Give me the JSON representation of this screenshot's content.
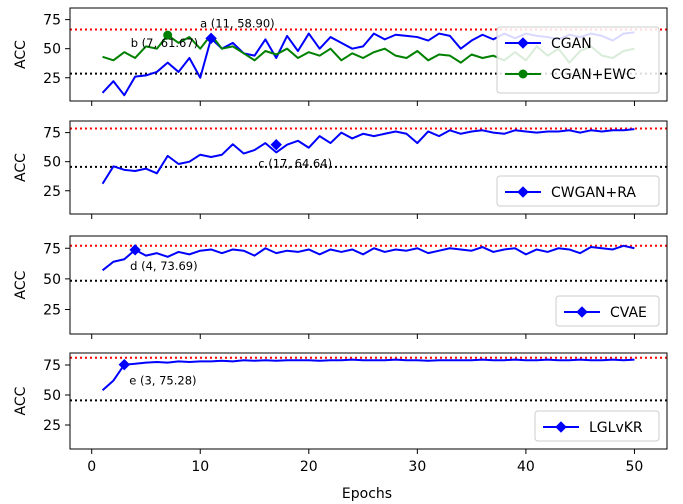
{
  "colors": {
    "cgan": "#0000ff",
    "cgan_ewc": "#008000",
    "upper_ref": "#ff0000",
    "lower_ref": "#000000"
  },
  "chart_data": [
    {
      "type": "line",
      "ylabel": "ACC",
      "xlim": [
        -2,
        53
      ],
      "ylim": [
        5,
        85
      ],
      "yticks": [
        25,
        50,
        75
      ],
      "xticks": [
        0,
        10,
        20,
        30,
        40,
        50
      ],
      "show_xticklabels": false,
      "legend_position": "lower-right",
      "ref_lines": [
        {
          "y": 66.5,
          "color": "#ff0000",
          "style": "dotted"
        },
        {
          "y": 28.5,
          "color": "#000000",
          "style": "dotted"
        }
      ],
      "series": [
        {
          "name": "CGAN",
          "color": "#0000ff",
          "marker": "diamond",
          "x": [
            1,
            2,
            3,
            4,
            5,
            6,
            7,
            8,
            9,
            10,
            11,
            12,
            13,
            14,
            15,
            16,
            17,
            18,
            19,
            20,
            21,
            22,
            23,
            24,
            25,
            26,
            27,
            28,
            29,
            30,
            31,
            32,
            33,
            34,
            35,
            36,
            37,
            38,
            39,
            40,
            41,
            42,
            43,
            44,
            45,
            46,
            47,
            48,
            49,
            50
          ],
          "values": [
            12,
            22,
            10,
            26,
            27,
            30,
            38,
            30,
            42,
            25,
            58.9,
            50,
            55,
            46,
            44,
            58,
            42,
            61,
            48,
            63,
            50,
            60,
            55,
            50,
            52,
            63,
            58,
            62,
            61,
            60,
            57,
            63,
            61,
            50,
            57,
            62,
            58,
            63,
            59,
            63,
            61,
            60,
            58,
            62,
            60,
            63,
            61,
            57,
            63,
            64
          ]
        },
        {
          "name": "CGAN+EWC",
          "color": "#008000",
          "marker": "circle",
          "x": [
            1,
            2,
            3,
            4,
            5,
            6,
            7,
            8,
            9,
            10,
            11,
            12,
            13,
            14,
            15,
            16,
            17,
            18,
            19,
            20,
            21,
            22,
            23,
            24,
            25,
            26,
            27,
            28,
            29,
            30,
            31,
            32,
            33,
            34,
            35,
            36,
            37,
            38,
            39,
            40,
            41,
            42,
            43,
            44,
            45,
            46,
            47,
            48,
            49,
            50
          ],
          "values": [
            43,
            40,
            47,
            42,
            52,
            50,
            61.67,
            55,
            60,
            50,
            62,
            50,
            52,
            46,
            40,
            48,
            45,
            50,
            42,
            47,
            44,
            50,
            40,
            46,
            42,
            47,
            50,
            44,
            42,
            48,
            40,
            45,
            44,
            38,
            45,
            42,
            44,
            40,
            47,
            40,
            52,
            44,
            50,
            38,
            48,
            52,
            44,
            42,
            48,
            50
          ]
        }
      ],
      "annotations": [
        {
          "text": "a (11, 58.90)",
          "x": 11,
          "y": 58.9,
          "series": 0
        },
        {
          "text": "b (7, 61.67)",
          "x": 7,
          "y": 61.67,
          "series": 1
        }
      ]
    },
    {
      "type": "line",
      "ylabel": "ACC",
      "xlim": [
        -2,
        53
      ],
      "ylim": [
        5,
        85
      ],
      "yticks": [
        25,
        50,
        75
      ],
      "xticks": [
        0,
        10,
        20,
        30,
        40,
        50
      ],
      "show_xticklabels": false,
      "legend_position": "lower-right",
      "ref_lines": [
        {
          "y": 78.5,
          "color": "#ff0000",
          "style": "dotted"
        },
        {
          "y": 45.5,
          "color": "#000000",
          "style": "dotted"
        }
      ],
      "series": [
        {
          "name": "CWGAN+RA",
          "color": "#0000ff",
          "marker": "diamond",
          "x": [
            1,
            2,
            3,
            4,
            5,
            6,
            7,
            8,
            9,
            10,
            11,
            12,
            13,
            14,
            15,
            16,
            17,
            18,
            19,
            20,
            21,
            22,
            23,
            24,
            25,
            26,
            27,
            28,
            29,
            30,
            31,
            32,
            33,
            34,
            35,
            36,
            37,
            38,
            39,
            40,
            41,
            42,
            43,
            44,
            45,
            46,
            47,
            48,
            49,
            50
          ],
          "values": [
            31,
            46,
            43,
            42,
            44,
            40,
            55,
            48,
            50,
            56,
            54,
            56,
            65,
            57,
            60,
            66,
            58,
            64.64,
            68,
            62,
            72,
            66,
            75,
            70,
            74,
            72,
            74,
            76,
            74,
            66,
            76,
            72,
            77,
            74,
            76,
            77,
            75,
            74,
            77,
            76,
            75,
            76,
            76,
            77,
            75,
            77,
            76,
            77,
            77,
            78
          ]
        }
      ],
      "annotations": [
        {
          "text": "c (17, 64.64)",
          "x": 17,
          "y": 64.64,
          "series": 0
        }
      ]
    },
    {
      "type": "line",
      "ylabel": "ACC",
      "xlim": [
        -2,
        53
      ],
      "ylim": [
        5,
        85
      ],
      "yticks": [
        25,
        50,
        75
      ],
      "xticks": [
        0,
        10,
        20,
        30,
        40,
        50
      ],
      "show_xticklabels": false,
      "legend_position": "lower-right",
      "ref_lines": [
        {
          "y": 77,
          "color": "#ff0000",
          "style": "dotted"
        },
        {
          "y": 48.5,
          "color": "#000000",
          "style": "dotted"
        }
      ],
      "series": [
        {
          "name": "CVAE",
          "color": "#0000ff",
          "marker": "diamond",
          "x": [
            1,
            2,
            3,
            4,
            5,
            6,
            7,
            8,
            9,
            10,
            11,
            12,
            13,
            14,
            15,
            16,
            17,
            18,
            19,
            20,
            21,
            22,
            23,
            24,
            25,
            26,
            27,
            28,
            29,
            30,
            31,
            32,
            33,
            34,
            35,
            36,
            37,
            38,
            39,
            40,
            41,
            42,
            43,
            44,
            45,
            46,
            47,
            48,
            49,
            50
          ],
          "values": [
            57,
            64,
            66,
            73.69,
            69,
            71,
            68,
            72,
            70,
            73,
            74,
            71,
            74,
            73,
            69,
            75,
            71,
            73,
            72,
            74,
            70,
            74,
            72,
            74,
            70,
            75,
            72,
            74,
            73,
            75,
            71,
            73,
            75,
            74,
            73,
            76,
            72,
            74,
            75,
            70,
            74,
            72,
            75,
            74,
            71,
            76,
            75,
            74,
            77,
            75
          ]
        }
      ],
      "annotations": [
        {
          "text": "d (4, 73.69)",
          "x": 4,
          "y": 73.69,
          "series": 0
        }
      ]
    },
    {
      "type": "line",
      "ylabel": "ACC",
      "xlabel": "Epochs",
      "xlim": [
        -2,
        53
      ],
      "ylim": [
        5,
        85
      ],
      "yticks": [
        25,
        50,
        75
      ],
      "xticks": [
        0,
        10,
        20,
        30,
        40,
        50
      ],
      "show_xticklabels": true,
      "legend_position": "lower-right",
      "ref_lines": [
        {
          "y": 81,
          "color": "#ff0000",
          "style": "dotted"
        },
        {
          "y": 45.5,
          "color": "#000000",
          "style": "dotted"
        }
      ],
      "series": [
        {
          "name": "LGLvKR",
          "color": "#0000ff",
          "marker": "diamond",
          "x": [
            1,
            2,
            3,
            4,
            5,
            6,
            7,
            8,
            9,
            10,
            11,
            12,
            13,
            14,
            15,
            16,
            17,
            18,
            19,
            20,
            21,
            22,
            23,
            24,
            25,
            26,
            27,
            28,
            29,
            30,
            31,
            32,
            33,
            34,
            35,
            36,
            37,
            38,
            39,
            40,
            41,
            42,
            43,
            44,
            45,
            46,
            47,
            48,
            49,
            50
          ],
          "values": [
            54,
            62,
            75.28,
            76,
            77,
            77.5,
            77,
            78,
            77.5,
            78,
            78,
            78.5,
            78,
            79,
            78.5,
            79,
            78.5,
            79,
            79,
            79,
            78.5,
            79,
            79,
            79.5,
            79,
            79,
            79,
            79.5,
            79,
            79,
            78.5,
            79,
            79,
            79,
            79,
            79.5,
            79,
            79,
            79.5,
            79,
            79,
            79.5,
            79,
            79,
            79.5,
            79,
            79,
            79.5,
            79,
            79.5
          ]
        }
      ],
      "annotations": [
        {
          "text": "e (3, 75.28)",
          "x": 3,
          "y": 75.28,
          "series": 0
        }
      ]
    }
  ]
}
